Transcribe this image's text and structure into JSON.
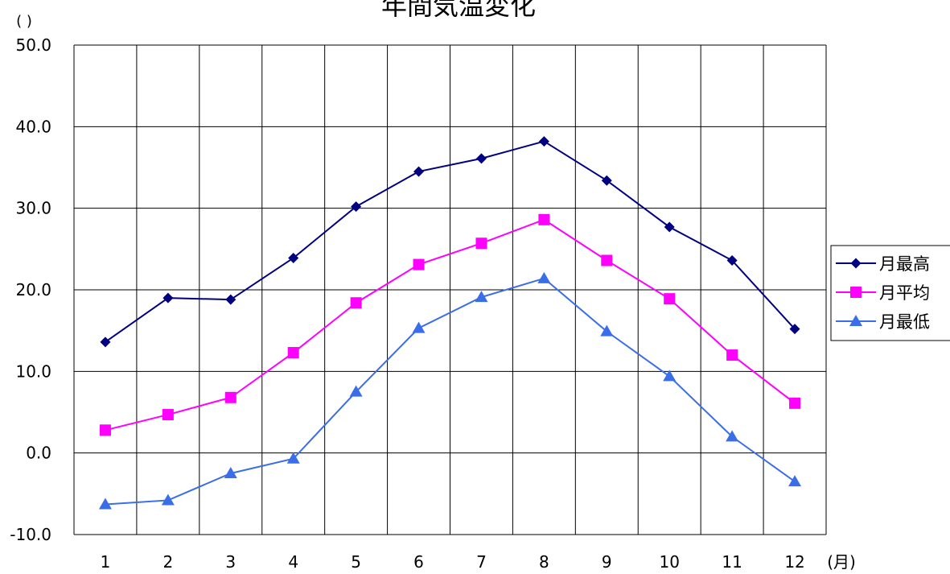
{
  "chart_data": {
    "type": "line",
    "title": "年間気温変化",
    "ylabel": "( )",
    "xlabel": "(月)",
    "categories": [
      "1",
      "2",
      "3",
      "4",
      "5",
      "6",
      "7",
      "8",
      "9",
      "10",
      "11",
      "12"
    ],
    "ylim": [
      -10,
      50
    ],
    "yticks": [
      "-10.0",
      "0.0",
      "10.0",
      "20.0",
      "30.0",
      "40.0",
      "50.0"
    ],
    "grid": true,
    "legend_position": "right",
    "series": [
      {
        "name": "月最高",
        "color": "#000080",
        "marker": "diamond",
        "values": [
          13.6,
          19.0,
          18.8,
          23.9,
          30.2,
          34.5,
          36.1,
          38.2,
          33.4,
          27.7,
          23.6,
          15.2
        ]
      },
      {
        "name": "月平均",
        "color": "#ff00ff",
        "marker": "square",
        "values": [
          2.8,
          4.7,
          6.8,
          12.3,
          18.4,
          23.1,
          25.7,
          28.6,
          23.6,
          18.9,
          12.0,
          6.1
        ]
      },
      {
        "name": "月最低",
        "color": "#3a6ee8",
        "marker": "triangle",
        "values": [
          -6.3,
          -5.8,
          -2.5,
          -0.7,
          7.5,
          15.3,
          19.1,
          21.4,
          14.9,
          9.4,
          2.0,
          -3.5
        ]
      }
    ]
  }
}
